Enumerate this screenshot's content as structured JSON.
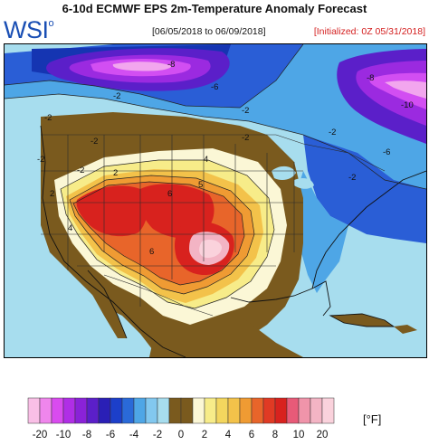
{
  "header": {
    "title": "6-10d ECMWF EPS 2m-Temperature Anomaly Forecast",
    "logo": "WSI",
    "logo_mark": "o",
    "date_range": "[06/05/2018 to 06/09/2018]",
    "initialized": "[Initialized: 0Z 05/31/2018]"
  },
  "colors": {
    "ocean": "#a7ddee",
    "brown_land": "#7a5a1e",
    "neutral": "#fbf7d6",
    "warm_1": "#f7ec89",
    "warm_2": "#f3c24a",
    "warm_3": "#ef9b33",
    "warm_4": "#e8652a",
    "warm_5": "#d8221e",
    "hot_core": "#f3b4c4",
    "cool_1": "#9fd6ec",
    "cool_2": "#4ea6e6",
    "cool_3": "#2a5ed6",
    "cool_4": "#1535b2",
    "cold_1": "#5b1fc9",
    "cold_2": "#9b2ae0",
    "cold_3": "#d24ef2",
    "cold_core": "#f2a6ee"
  },
  "map": {
    "contour_labels": [
      "-2",
      "-2",
      "-2",
      "-2",
      "-8",
      "-2",
      "-6",
      "-2",
      "2",
      "4",
      "2",
      "6",
      "6",
      "5",
      "4",
      "-2",
      "-6",
      "-2",
      "-2",
      "-8",
      "-10"
    ]
  },
  "legend": {
    "unit": "[°F]",
    "ticks": [
      "-20",
      "-10",
      "-8",
      "-6",
      "-4",
      "-2",
      "0",
      "2",
      "4",
      "6",
      "8",
      "10",
      "20"
    ],
    "colors": [
      "#f9bfe6",
      "#ef86ec",
      "#d94bef",
      "#b02ee6",
      "#8a22d8",
      "#5b1fc9",
      "#2a1fb6",
      "#1c3fca",
      "#2a6ad8",
      "#4ea6e6",
      "#82c8ef",
      "#a7ddee",
      "#7a5a1e",
      "#7a5a1e",
      "#fbf7d6",
      "#f7ec89",
      "#f3d65e",
      "#f3c24a",
      "#ef9b33",
      "#e8652a",
      "#e03a24",
      "#d8221e",
      "#e85a78",
      "#f094aa",
      "#f3b4c4",
      "#fad2dc"
    ]
  }
}
